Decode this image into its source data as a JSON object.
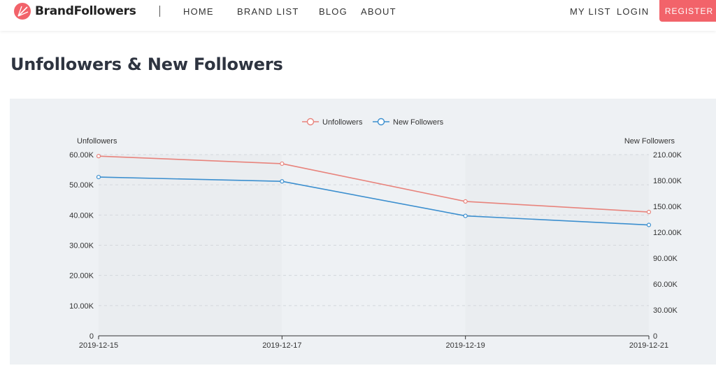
{
  "header": {
    "brand": "BrandFollowers",
    "nav": {
      "home": "HOME",
      "brand_list": "BRAND LIST",
      "blog": "BLOG",
      "about": "ABOUT",
      "my_list": "MY LIST",
      "login": "LOGIN",
      "register": "REGISTER"
    }
  },
  "page": {
    "title": "Unfollowers & New Followers"
  },
  "colors": {
    "accent": "#f2636a",
    "unfollowers": "#e8837c",
    "new_followers": "#3c8fcf"
  },
  "chart_data": {
    "type": "line",
    "legend": "top-center",
    "grid": true,
    "categories": [
      "2019-12-15",
      "2019-12-17",
      "2019-12-19",
      "2019-12-21"
    ],
    "left_axis": {
      "label": "Unfollowers",
      "range": [
        0,
        60000
      ],
      "ticks": [
        "0",
        "10.00K",
        "20.00K",
        "30.00K",
        "40.00K",
        "50.00K",
        "60.00K"
      ]
    },
    "right_axis": {
      "label": "New Followers",
      "range": [
        0,
        210000
      ],
      "ticks": [
        "0",
        "30.00K",
        "60.00K",
        "90.00K",
        "120.00K",
        "150.00K",
        "180.00K",
        "210.00K"
      ]
    },
    "series": [
      {
        "name": "Unfollowers",
        "axis": "left",
        "values": [
          59500,
          57000,
          44500,
          41000
        ]
      },
      {
        "name": "New Followers",
        "axis": "right",
        "values": [
          184000,
          179000,
          139000,
          128500
        ]
      }
    ]
  }
}
